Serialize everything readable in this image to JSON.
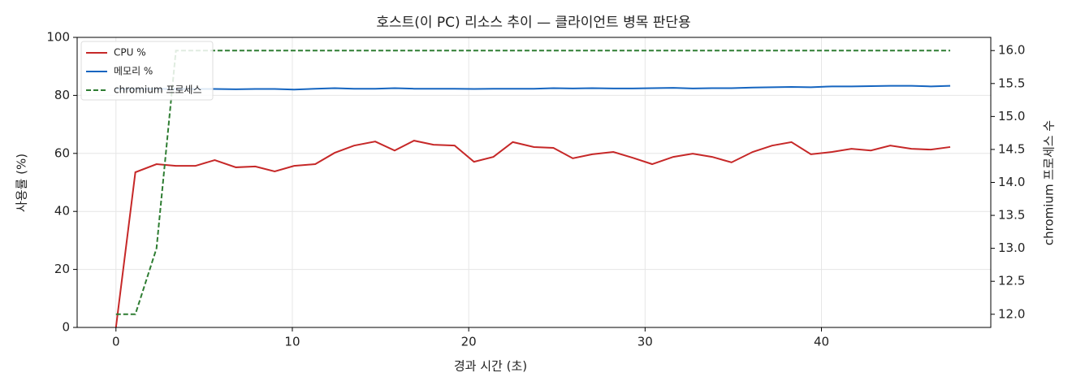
{
  "chart_data": {
    "type": "line",
    "title": "호스트(이 PC) 리소스 추이 — 클라이언트 병목 판단용",
    "x_label": "경과 시간 (초)",
    "y_label": "사용률 (%)",
    "y2_label": "chromium 프로세스 수",
    "x": [
      0,
      1.1,
      2.3,
      3.4,
      4.5,
      5.6,
      6.8,
      7.9,
      9.0,
      10.1,
      11.3,
      12.4,
      13.5,
      14.7,
      15.8,
      16.9,
      18.0,
      19.2,
      20.3,
      21.4,
      22.5,
      23.7,
      24.8,
      25.9,
      27.0,
      28.2,
      29.3,
      30.4,
      31.6,
      32.7,
      33.8,
      34.9,
      36.1,
      37.2,
      38.3,
      39.4,
      40.6,
      41.7,
      42.8,
      43.9,
      45.1,
      46.2,
      47.3
    ],
    "series": [
      {
        "name": "CPU %",
        "color": "#c62828",
        "linestyle": "solid",
        "values": [
          0,
          53.5,
          56.3,
          55.7,
          55.7,
          57.7,
          55.2,
          55.5,
          53.8,
          55.7,
          56.3,
          60.2,
          62.7,
          64.1,
          61,
          64.4,
          63,
          62.7,
          57.1,
          58.8,
          63.9,
          62.2,
          61.9,
          58.3,
          59.7,
          60.5,
          58.5,
          56.3,
          58.8,
          59.9,
          58.8,
          56.9,
          60.5,
          62.7,
          63.9,
          59.7,
          60.5,
          61.6,
          61,
          62.7,
          61.6,
          61.3,
          62.2
        ]
      },
      {
        "name": "메모리 %",
        "color": "#1565c0",
        "linestyle": "solid",
        "values": [
          82.2,
          82.2,
          82.3,
          82.2,
          82.2,
          82.2,
          82.1,
          82.2,
          82.2,
          82.0,
          82.3,
          82.5,
          82.3,
          82.3,
          82.5,
          82.3,
          82.3,
          82.3,
          82.2,
          82.3,
          82.3,
          82.3,
          82.5,
          82.4,
          82.5,
          82.4,
          82.4,
          82.5,
          82.6,
          82.4,
          82.5,
          82.5,
          82.7,
          82.8,
          82.9,
          82.8,
          83.1,
          83.1,
          83.2,
          83.3,
          83.3,
          83.1,
          83.3
        ]
      },
      {
        "name": "chromium 프로세스",
        "color": "#2e7d32",
        "linestyle": "dashed",
        "axis": "y2",
        "values": [
          12,
          12,
          13,
          16,
          16,
          16,
          16,
          16,
          16,
          16,
          16,
          16,
          16,
          16,
          16,
          16,
          16,
          16,
          16,
          16,
          16,
          16,
          16,
          16,
          16,
          16,
          16,
          16,
          16,
          16,
          16,
          16,
          16,
          16,
          16,
          16,
          16,
          16,
          16,
          16,
          16,
          16,
          16
        ]
      }
    ],
    "xlim": [
      -2.2,
      49.6
    ],
    "xticks": [
      0,
      10,
      20,
      30,
      40
    ],
    "ylim": [
      0,
      100
    ],
    "yticks": [
      0,
      20,
      40,
      60,
      80,
      100
    ],
    "y2lim": [
      11.8,
      16.2
    ],
    "y2ticks": [
      {
        "value": 12,
        "label": "12.0"
      },
      {
        "value": 12.5,
        "label": "12.5"
      },
      {
        "value": 13,
        "label": "13.0"
      },
      {
        "value": 13.5,
        "label": "13.5"
      },
      {
        "value": 14,
        "label": "14.0"
      },
      {
        "value": 14.5,
        "label": "14.5"
      },
      {
        "value": 15,
        "label": "15.0"
      },
      {
        "value": 15.5,
        "label": "15.5"
      },
      {
        "value": 16,
        "label": "16.0"
      }
    ],
    "grid": true,
    "legend": "upper left"
  }
}
